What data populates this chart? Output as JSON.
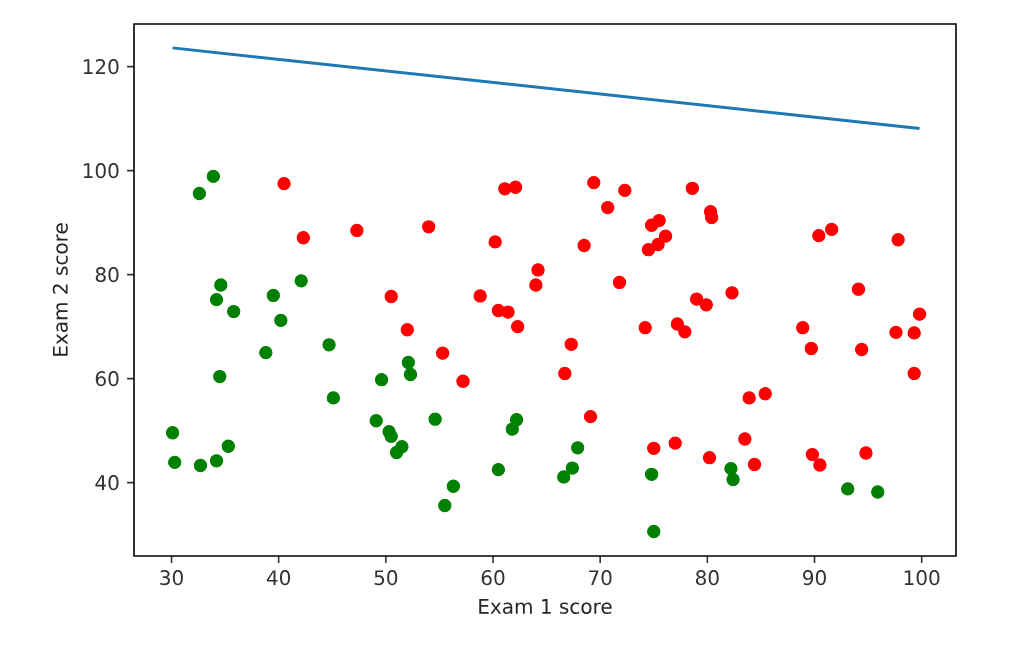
{
  "chart_data": {
    "type": "scatter",
    "xlabel": "Exam 1 score",
    "ylabel": "Exam 2 score",
    "xlim": [
      26.5,
      103.2
    ],
    "ylim": [
      25.9,
      128.2
    ],
    "xticks": [
      30,
      40,
      50,
      60,
      70,
      80,
      90,
      100
    ],
    "yticks": [
      40,
      60,
      80,
      100,
      120
    ],
    "marker": "circle",
    "series": [
      {
        "color": "#ff0000",
        "x": [
          60.2,
          79.0,
          61.1,
          75.0,
          76.1,
          84.4,
          82.3,
          69.4,
          54.0,
          69.1,
          70.7,
          77.0,
          89.7,
          77.9,
          62.3,
          80.2,
          61.4,
          85.4,
          52.0,
          64.2,
          83.9,
          94.4,
          77.2,
          97.8,
          62.1,
          91.6,
          79.9,
          99.3,
          90.5,
          97.6,
          74.2,
          71.8,
          75.4,
          40.5,
          80.3,
          66.7,
          64.0,
          72.3,
          60.5,
          58.8,
          99.8,
          47.3,
          50.5,
          88.9,
          94.8,
          67.3,
          57.2,
          80.4,
          68.5,
          75.5,
          78.6,
          94.1,
          90.4,
          74.5,
          89.8,
          83.5,
          42.3,
          99.3,
          55.3,
          74.8
        ],
        "values": [
          86.3,
          75.3,
          96.5,
          46.6,
          87.4,
          43.5,
          76.5,
          97.7,
          89.2,
          52.7,
          92.9,
          47.6,
          65.8,
          69.0,
          70.0,
          44.8,
          72.8,
          57.1,
          69.4,
          80.9,
          56.3,
          65.6,
          70.5,
          86.7,
          96.8,
          88.7,
          74.2,
          61.0,
          43.4,
          68.9,
          69.8,
          78.5,
          85.8,
          97.5,
          92.1,
          61.0,
          78.0,
          96.2,
          73.1,
          75.9,
          72.4,
          88.5,
          75.8,
          69.8,
          45.7,
          66.6,
          59.5,
          91.0,
          85.6,
          90.4,
          96.6,
          77.2,
          87.5,
          84.8,
          45.4,
          48.4,
          87.1,
          68.8,
          64.9,
          89.5
        ]
      },
      {
        "color": "#008000",
        "x": [
          34.6,
          30.3,
          35.8,
          45.1,
          95.9,
          75.0,
          39.5,
          67.9,
          67.4,
          50.5,
          34.2,
          93.1,
          61.8,
          38.8,
          52.1,
          40.2,
          54.6,
          33.9,
          74.8,
          34.2,
          51.5,
          82.4,
          51.0,
          62.2,
          34.5,
          50.3,
          49.6,
          32.6,
          35.3,
          56.3,
          30.1,
          44.7,
          66.6,
          49.1,
          32.7,
          60.5,
          82.2,
          42.1,
          52.3,
          55.5
        ],
        "values": [
          78.0,
          43.9,
          72.9,
          56.3,
          38.2,
          30.6,
          76.0,
          46.7,
          42.8,
          48.9,
          44.2,
          38.8,
          50.3,
          65.0,
          63.1,
          71.2,
          52.2,
          98.9,
          41.6,
          75.2,
          46.9,
          40.6,
          45.8,
          52.1,
          60.4,
          49.8,
          59.8,
          95.6,
          47.0,
          39.3,
          49.6,
          66.5,
          41.1,
          51.9,
          43.3,
          42.5,
          42.7,
          78.8,
          60.8,
          35.6
        ]
      },
      {
        "type": "line",
        "marker": "none",
        "color": "#1f77b4",
        "x": [
          30.1,
          99.8
        ],
        "values": [
          123.6,
          108.1
        ]
      }
    ]
  }
}
